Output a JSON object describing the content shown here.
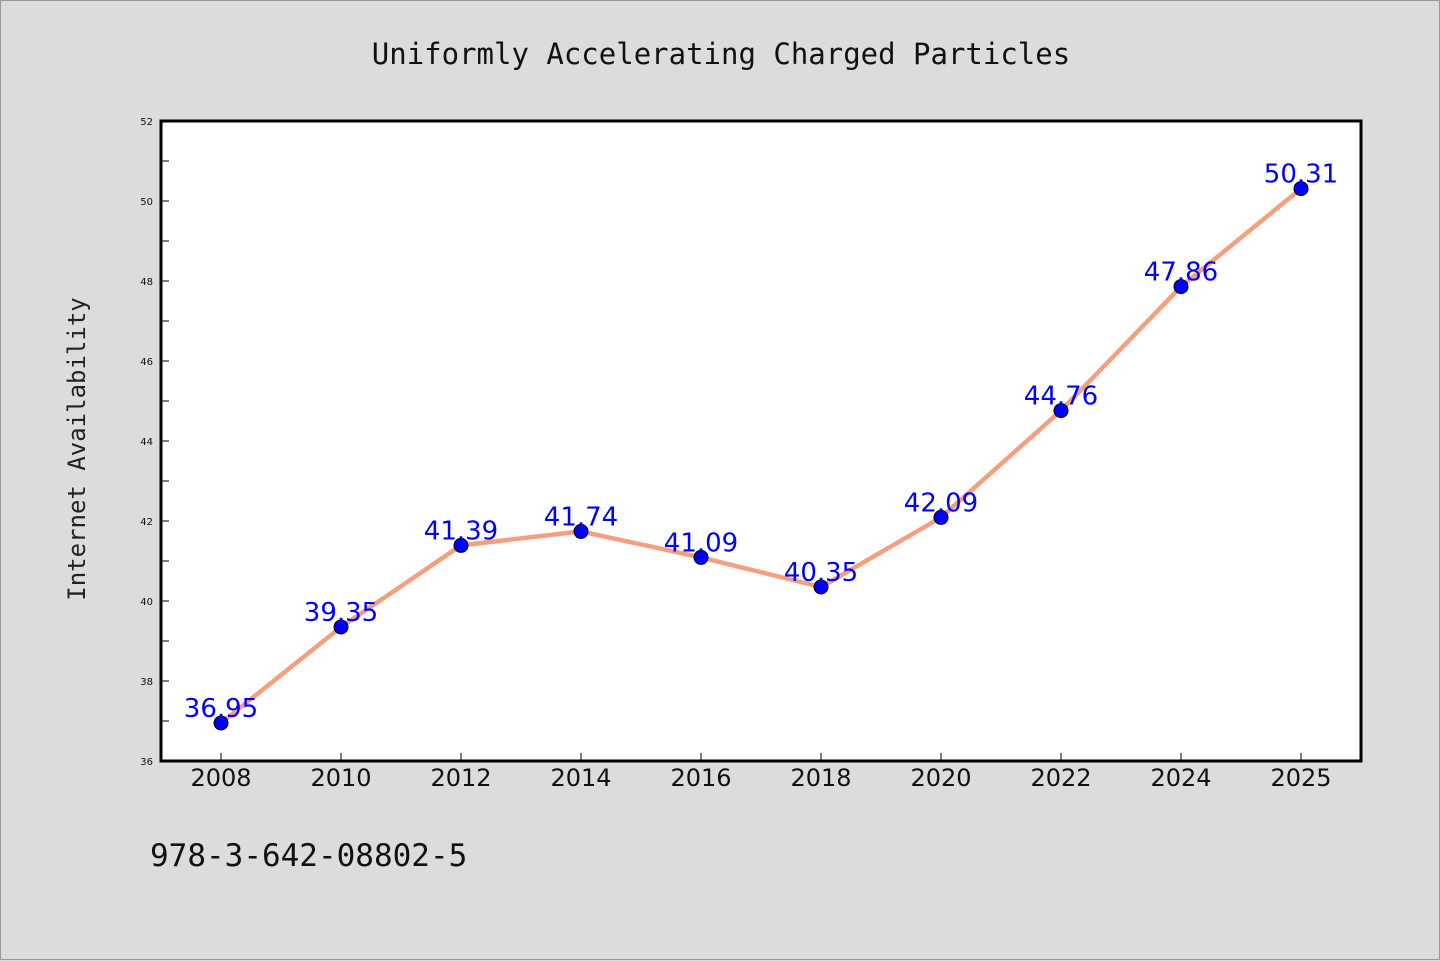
{
  "chart_data": {
    "type": "line",
    "title": "Uniformly Accelerating Charged Particles",
    "xlabel": "",
    "ylabel": "Internet Availability",
    "categories": [
      "2008",
      "2010",
      "2012",
      "2014",
      "2016",
      "2018",
      "2020",
      "2022",
      "2024",
      "2025"
    ],
    "values": [
      36.95,
      39.35,
      41.39,
      41.74,
      41.09,
      40.35,
      42.09,
      44.76,
      47.86,
      50.31
    ],
    "data_labels": [
      "36.95",
      "39.35",
      "41.39",
      "41.74",
      "41.09",
      "40.35",
      "42.09",
      "44.76",
      "47.86",
      "50.31"
    ],
    "ylim": [
      36,
      52
    ],
    "yticks": [
      "36",
      "38",
      "40",
      "42",
      "44",
      "46",
      "48",
      "50",
      "52"
    ],
    "grid": false,
    "colors": {
      "line": "#f4a07e",
      "marker": "#0000ff",
      "data_label": "#0000ff",
      "background": "#dcdcdc",
      "plot_background": "#ffffff"
    }
  },
  "footer": {
    "isbn": "978-3-642-08802-5"
  }
}
